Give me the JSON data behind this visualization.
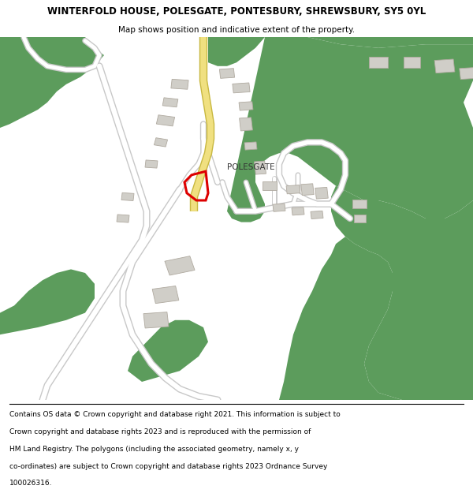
{
  "title": "WINTERFOLD HOUSE, POLESGATE, PONTESBURY, SHREWSBURY, SY5 0YL",
  "subtitle": "Map shows position and indicative extent of the property.",
  "footer_lines": [
    "Contains OS data © Crown copyright and database right 2021. This information is subject to",
    "Crown copyright and database rights 2023 and is reproduced with the permission of",
    "HM Land Registry. The polygons (including the associated geometry, namely x, y",
    "co-ordinates) are subject to Crown copyright and database rights 2023 Ordnance Survey",
    "100026316."
  ],
  "bg_color": "#f5f2ee",
  "green_color": "#5c9c5c",
  "road_fill": "#ffffff",
  "road_edge": "#c8c8c8",
  "yellow_fill": "#f0e080",
  "yellow_edge": "#c8b840",
  "building_fill": "#d0cec8",
  "building_edge": "#b0aaa0",
  "red_color": "#dd0000",
  "label_color": "#333333"
}
